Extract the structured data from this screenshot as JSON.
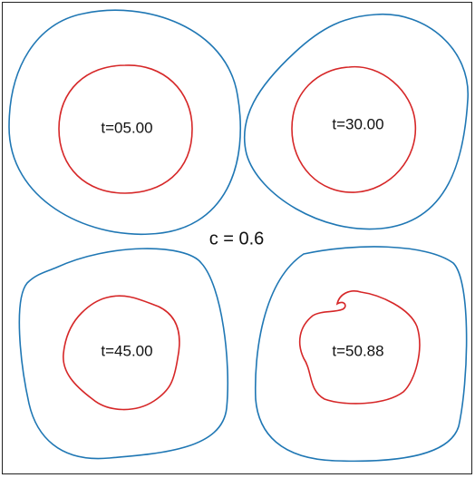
{
  "figure": {
    "parameter_label": "c = 0.6",
    "panels": [
      {
        "time_label": "t=05.00"
      },
      {
        "time_label": "t=30.00"
      },
      {
        "time_label": "t=45.00"
      },
      {
        "time_label": "t=50.88"
      }
    ]
  },
  "colors": {
    "outer_boundary": "#1f77b4",
    "inner_boundary": "#d62728",
    "frame": "#222222",
    "text": "#111111"
  }
}
